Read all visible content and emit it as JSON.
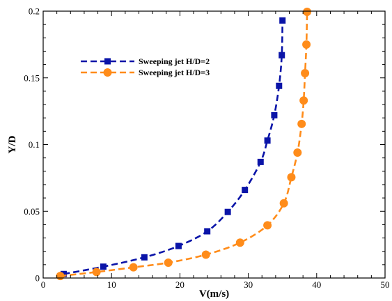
{
  "chart_data": {
    "type": "line",
    "xlabel": "V(m/s)",
    "ylabel": "Y/D",
    "xlim": [
      0,
      50
    ],
    "ylim": [
      0,
      0.2
    ],
    "x_ticks": [
      0,
      10,
      20,
      30,
      40,
      50
    ],
    "x_tick_labels": [
      "0",
      "10",
      "20",
      "30",
      "40",
      "50"
    ],
    "y_ticks": [
      0,
      0.05,
      0.1,
      0.15,
      0.2
    ],
    "y_tick_labels": [
      "0",
      "0.05",
      "0.1",
      "0.15",
      "0.2"
    ],
    "grid": false,
    "legend_position": "top-left",
    "series": [
      {
        "name": "Sweeping jet H/D=2",
        "color": "#0a14a8",
        "marker": "square",
        "line_style": "dashed",
        "points": [
          {
            "x": 3.0,
            "y": 0.003
          },
          {
            "x": 8.8,
            "y": 0.0085
          },
          {
            "x": 14.8,
            "y": 0.0155
          },
          {
            "x": 19.8,
            "y": 0.024
          },
          {
            "x": 24.0,
            "y": 0.035
          },
          {
            "x": 27.0,
            "y": 0.0495
          },
          {
            "x": 29.5,
            "y": 0.066
          },
          {
            "x": 31.8,
            "y": 0.087
          },
          {
            "x": 32.8,
            "y": 0.103
          },
          {
            "x": 33.8,
            "y": 0.122
          },
          {
            "x": 34.5,
            "y": 0.144
          },
          {
            "x": 34.9,
            "y": 0.167
          },
          {
            "x": 35.0,
            "y": 0.193
          }
        ]
      },
      {
        "name": "Sweeping jet H/D=3",
        "color": "#ff8c1a",
        "marker": "circle",
        "line_style": "dashed",
        "points": [
          {
            "x": 2.5,
            "y": 0.0015
          },
          {
            "x": 7.8,
            "y": 0.0045
          },
          {
            "x": 13.2,
            "y": 0.008
          },
          {
            "x": 18.3,
            "y": 0.0115
          },
          {
            "x": 23.8,
            "y": 0.0175
          },
          {
            "x": 28.8,
            "y": 0.0265
          },
          {
            "x": 32.8,
            "y": 0.0395
          },
          {
            "x": 35.2,
            "y": 0.056
          },
          {
            "x": 36.3,
            "y": 0.0755
          },
          {
            "x": 37.2,
            "y": 0.094
          },
          {
            "x": 37.8,
            "y": 0.1155
          },
          {
            "x": 38.1,
            "y": 0.133
          },
          {
            "x": 38.3,
            "y": 0.1535
          },
          {
            "x": 38.5,
            "y": 0.175
          },
          {
            "x": 38.6,
            "y": 0.1995
          }
        ]
      }
    ]
  }
}
